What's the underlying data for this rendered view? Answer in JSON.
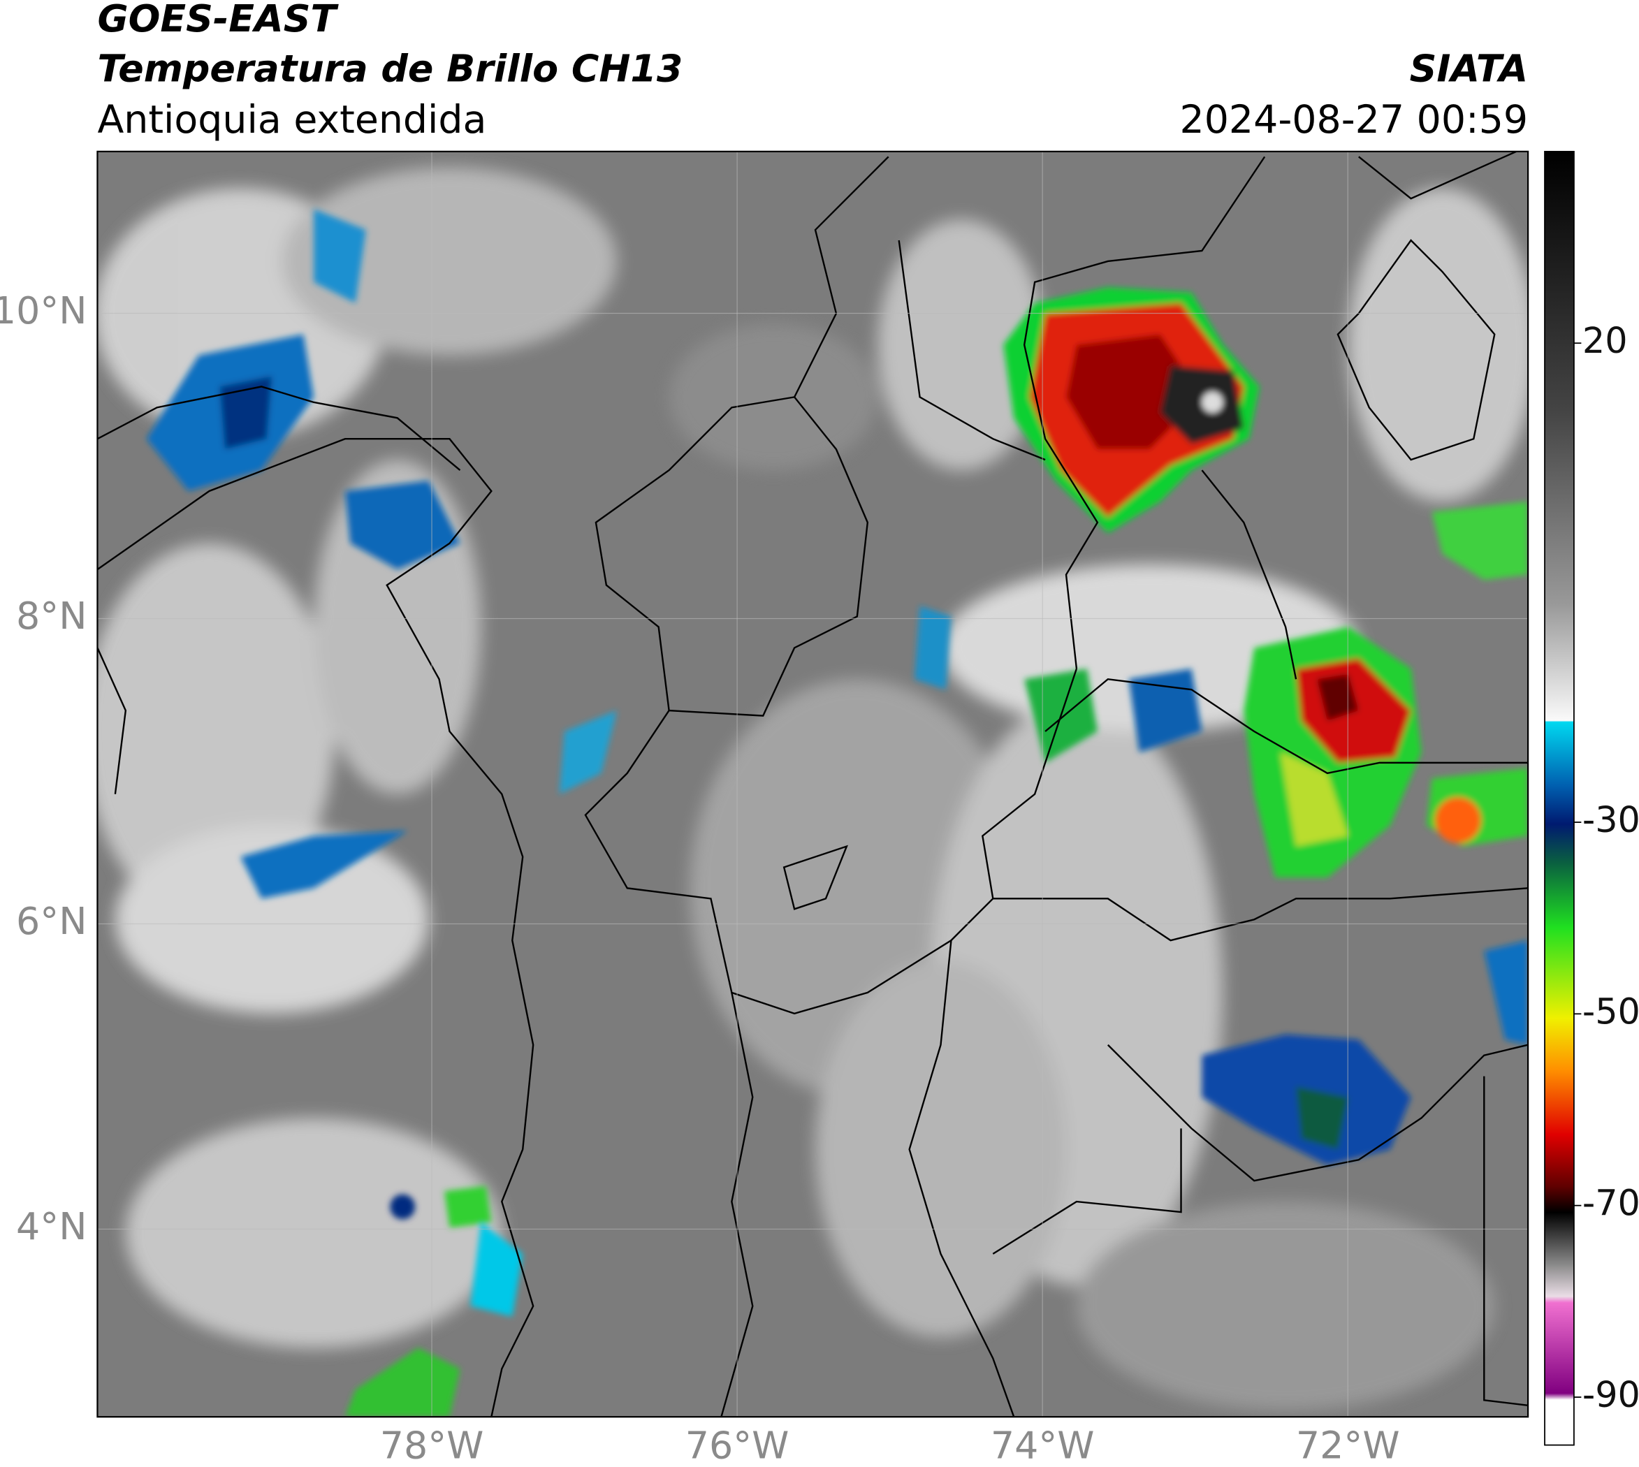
{
  "header": {
    "title": "GOES-EAST",
    "subtitle": "Temperatura de Brillo CH13",
    "region": "Antioquia extendida",
    "source": "SIATA",
    "timestamp": "2024-08-27 00:59"
  },
  "map": {
    "xlim": [
      -80.19,
      -70.82
    ],
    "ylim": [
      2.77,
      11.06
    ],
    "xticks": [
      {
        "value": -78,
        "label": "78°W"
      },
      {
        "value": -76,
        "label": "76°W"
      },
      {
        "value": -74,
        "label": "74°W"
      },
      {
        "value": -72,
        "label": "72°W"
      }
    ],
    "yticks": [
      {
        "value": 4,
        "label": "4°N"
      },
      {
        "value": 6,
        "label": "6°N"
      },
      {
        "value": 8,
        "label": "8°N"
      },
      {
        "value": 10,
        "label": "10°N"
      }
    ],
    "grid": true
  },
  "colorbar": {
    "lim": [
      -95,
      40
    ],
    "ticks": [
      20,
      -30,
      -50,
      -70,
      -90
    ]
  }
}
